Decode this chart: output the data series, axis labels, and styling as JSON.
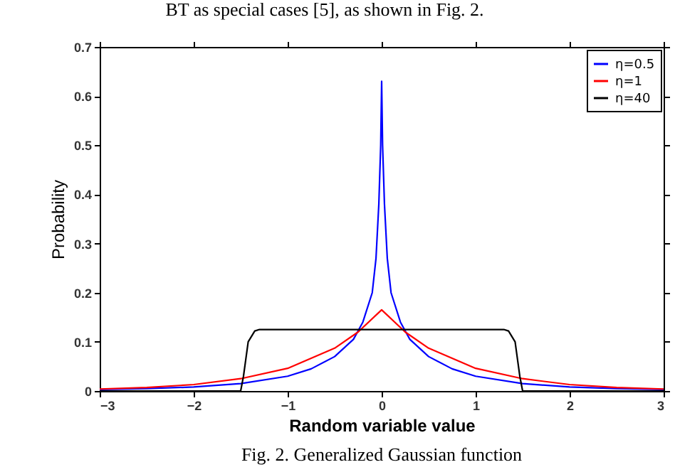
{
  "chart_data": {
    "type": "line",
    "xlabel": "Random variable value",
    "ylabel": "Probability",
    "annotations": [
      "BT as special cases [5], as shown in Fig. 2.",
      "Fig. 2.   Generalized Gaussian function"
    ],
    "xlim": [
      -3,
      3
    ],
    "ylim": [
      0,
      0.7
    ],
    "xticks": [
      -3,
      -2,
      -1,
      0,
      1,
      2,
      3
    ],
    "yticks": [
      0,
      0.1,
      0.2,
      0.3,
      0.4,
      0.5,
      0.6,
      0.7
    ],
    "grid": false,
    "legend": "top right",
    "marker": "none",
    "line_style": "solid",
    "series": [
      {
        "name": "η=0.5",
        "color": "#0000ff",
        "x": [
          -3,
          -2.5,
          -2,
          -1.5,
          -1,
          -0.75,
          -0.5,
          -0.3,
          -0.2,
          -0.1,
          -0.06,
          -0.03,
          -0.01,
          0,
          0.01,
          0.03,
          0.06,
          0.1,
          0.2,
          0.3,
          0.5,
          0.75,
          1,
          1.5,
          2,
          2.5,
          3
        ],
        "values": [
          0.003,
          0.005,
          0.008,
          0.015,
          0.03,
          0.045,
          0.07,
          0.105,
          0.14,
          0.2,
          0.27,
          0.38,
          0.5,
          0.63,
          0.5,
          0.38,
          0.27,
          0.2,
          0.14,
          0.105,
          0.07,
          0.045,
          0.03,
          0.015,
          0.008,
          0.005,
          0.003
        ]
      },
      {
        "name": "η=1",
        "color": "#ff0000",
        "x": [
          -3,
          -2.5,
          -2,
          -1.5,
          -1,
          -0.5,
          -0.25,
          0,
          0.25,
          0.5,
          1,
          1.5,
          2,
          2.5,
          3
        ],
        "values": [
          0.004,
          0.007,
          0.013,
          0.025,
          0.046,
          0.087,
          0.12,
          0.165,
          0.12,
          0.087,
          0.046,
          0.025,
          0.013,
          0.007,
          0.004
        ]
      },
      {
        "name": "η=40",
        "color": "#000000",
        "x": [
          -3,
          -1.5,
          -1.47,
          -1.42,
          -1.35,
          -1.3,
          1.3,
          1.35,
          1.42,
          1.47,
          1.5,
          3
        ],
        "values": [
          0,
          0,
          0.03,
          0.1,
          0.122,
          0.125,
          0.125,
          0.122,
          0.1,
          0.03,
          0,
          0
        ]
      }
    ]
  }
}
